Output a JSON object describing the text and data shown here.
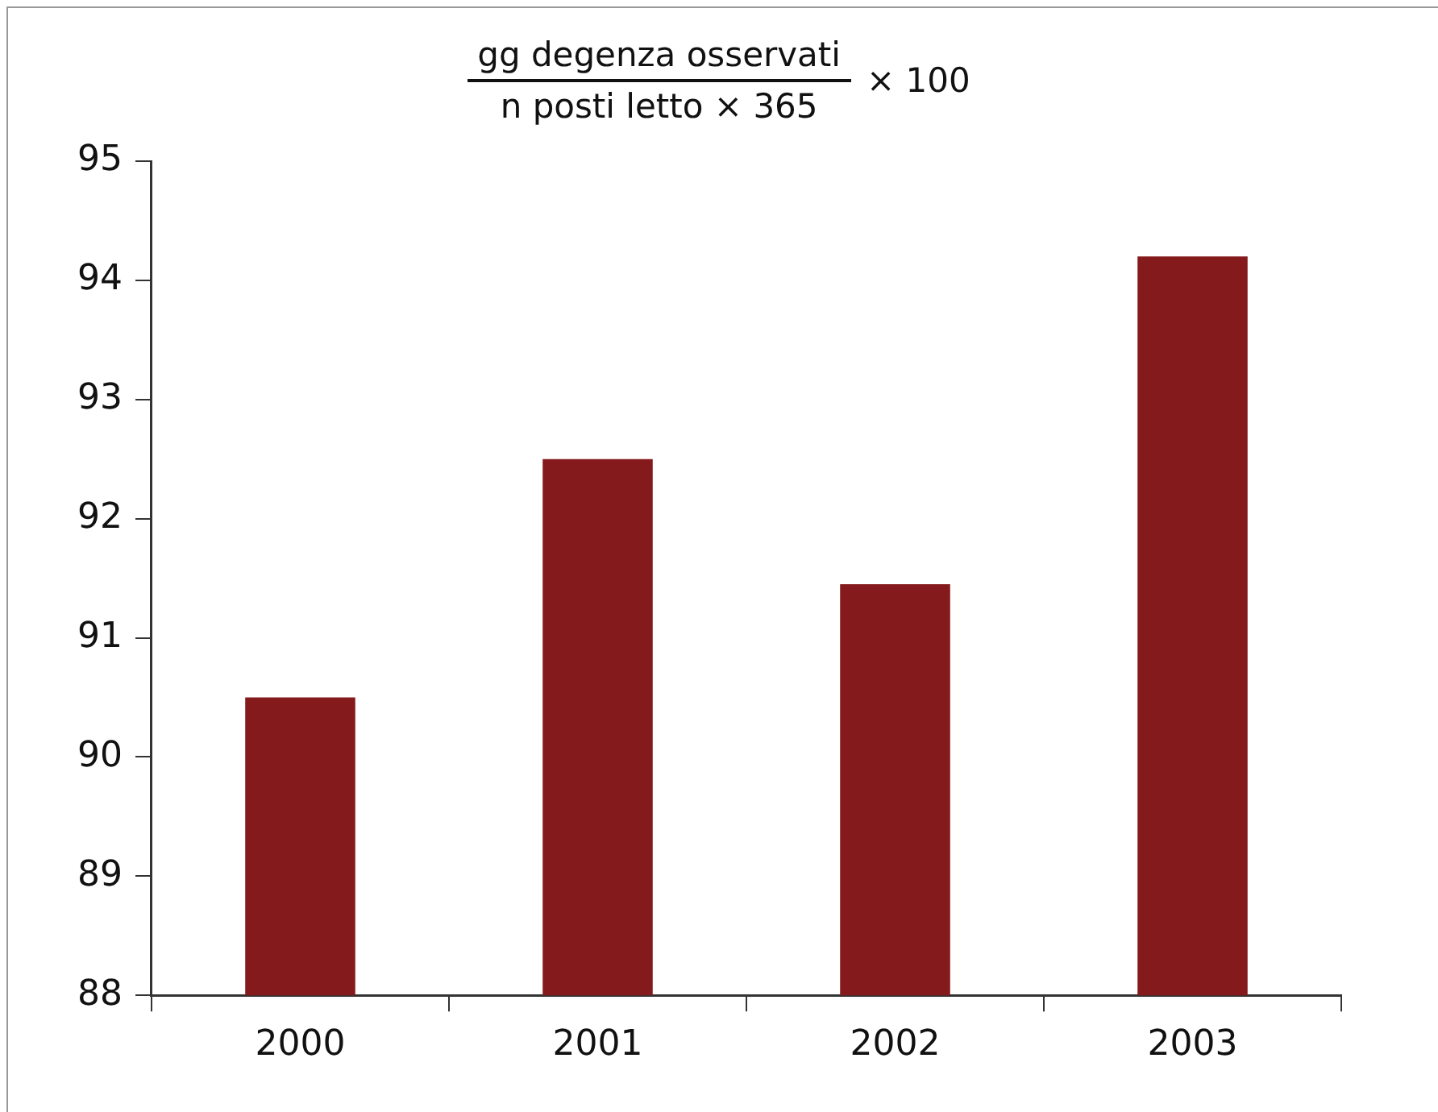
{
  "chart_data": {
    "type": "bar",
    "title": "gg degenza osservati",
    "subtitle": "n posti letto × 365",
    "annotations": [
      "× 100"
    ],
    "categories": [
      "2000",
      "2001",
      "2002",
      "2003"
    ],
    "values": [
      90.5,
      92.5,
      91.45,
      94.2
    ],
    "color": "#841a1c",
    "ylim": [
      88,
      95
    ],
    "yticks": [
      88,
      89,
      90,
      91,
      92,
      93,
      94,
      95
    ],
    "grid": false,
    "legend": false
  }
}
